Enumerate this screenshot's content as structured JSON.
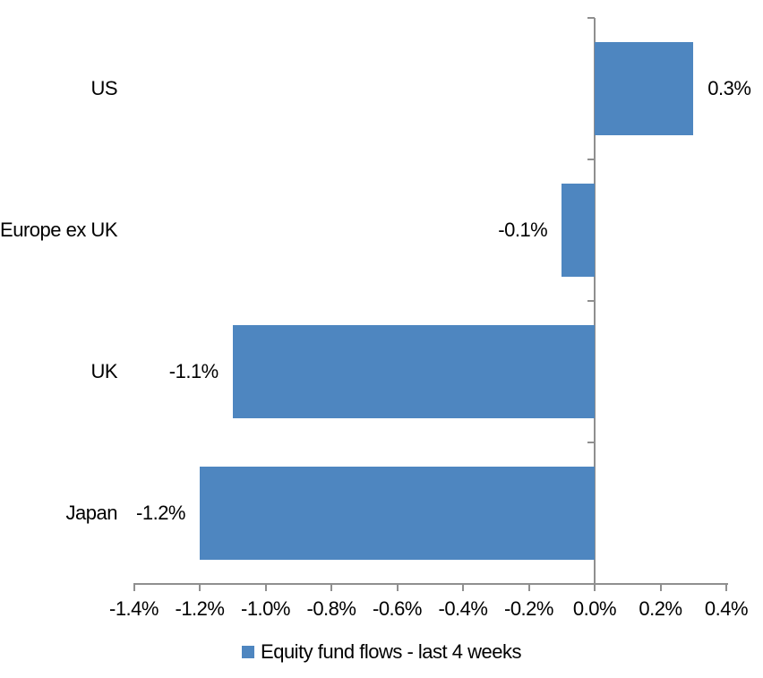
{
  "chart_data": {
    "type": "bar",
    "orientation": "horizontal",
    "categories": [
      "US",
      "Europe ex UK",
      "UK",
      "Japan"
    ],
    "series": [
      {
        "name": "Equity fund flows - last 4 weeks",
        "values": [
          0.3,
          -0.1,
          -1.1,
          -1.2
        ],
        "value_labels": [
          "0.3%",
          "-0.1%",
          "-1.1%",
          "-1.2%"
        ],
        "color": "#4e86c0"
      }
    ],
    "x_axis": {
      "tick_values": [
        -1.4,
        -1.2,
        -1.0,
        -0.8,
        -0.6,
        -0.4,
        -0.2,
        0.0,
        0.2,
        0.4
      ],
      "tick_labels": [
        "-1.4%",
        "-1.2%",
        "-1.0%",
        "-0.8%",
        "-0.6%",
        "-0.4%",
        "-0.2%",
        "0.0%",
        "0.2%",
        "0.4%"
      ],
      "range": [
        -1.4,
        0.4
      ],
      "unit": "%"
    },
    "grid": false,
    "data_label_position": "outside-end",
    "legend": {
      "position": "bottom",
      "label": "Equity fund flows - last 4 weeks",
      "swatch_color": "#4e86c0"
    },
    "colors": {
      "bar": "#4e86c0",
      "axis": "#8f8f8f",
      "text": "#000000",
      "background": "#ffffff"
    }
  }
}
